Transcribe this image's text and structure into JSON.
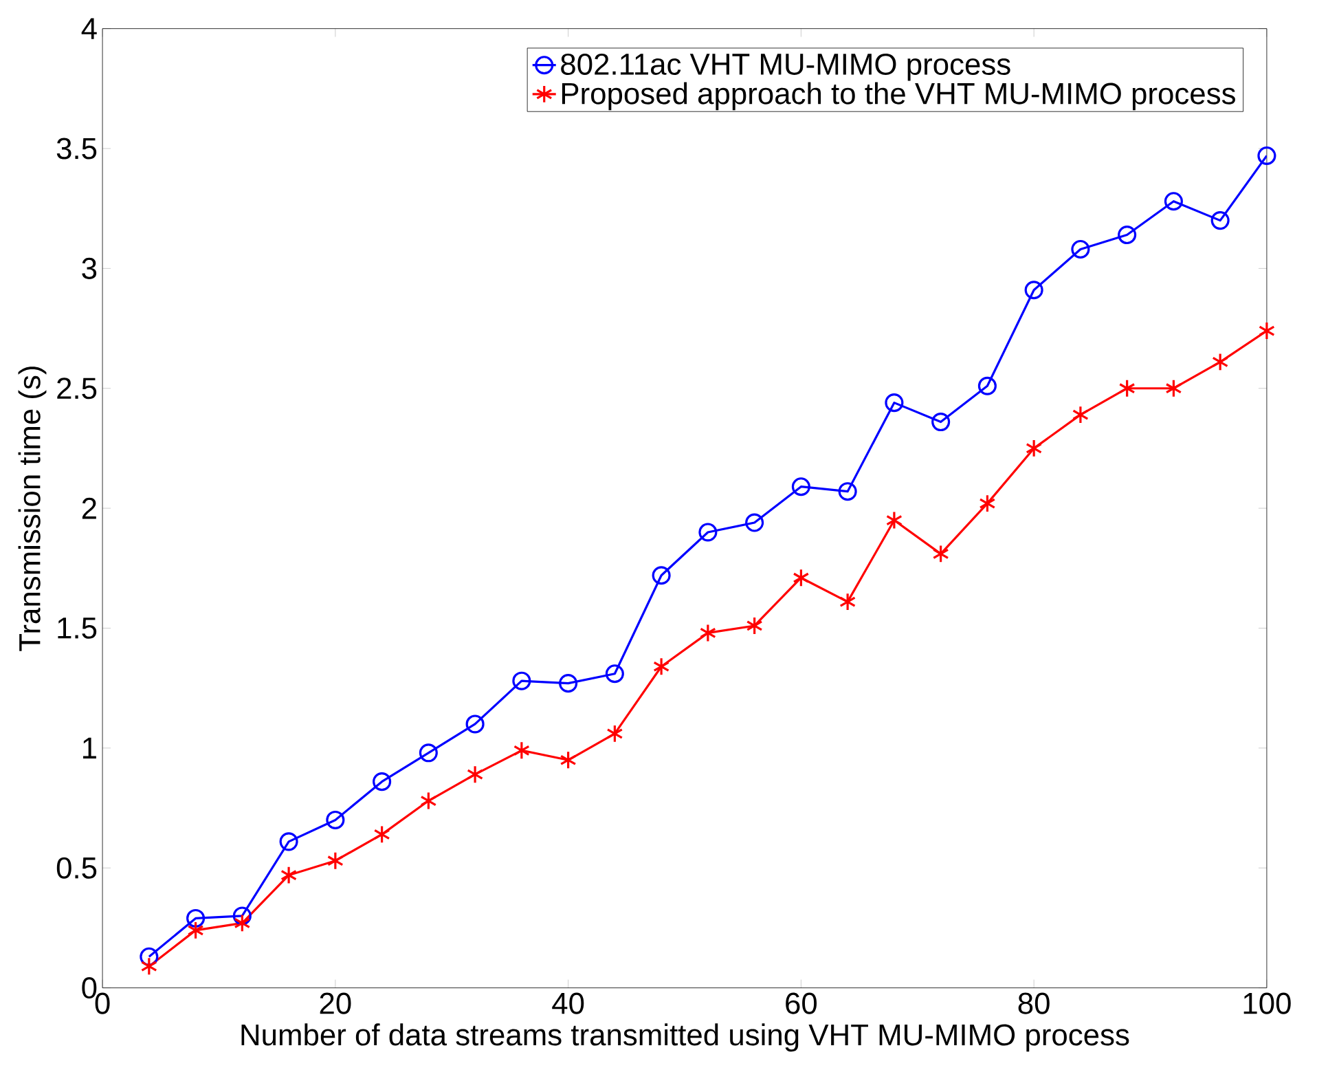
{
  "chart_data": {
    "type": "line",
    "xlabel": "Number of data streams transmitted using VHT MU-MIMO process",
    "ylabel": "Transmission time (s)",
    "x": [
      4,
      8,
      12,
      16,
      20,
      24,
      28,
      32,
      36,
      40,
      44,
      48,
      52,
      56,
      60,
      64,
      68,
      72,
      76,
      80,
      84,
      88,
      92,
      96,
      100
    ],
    "series": [
      {
        "name": "802.11ac VHT MU-MIMO process",
        "color": "#0000ff",
        "marker": "circle",
        "values": [
          0.13,
          0.29,
          0.3,
          0.61,
          0.7,
          0.86,
          0.98,
          1.1,
          1.28,
          1.27,
          1.31,
          1.72,
          1.9,
          1.94,
          2.09,
          2.07,
          2.44,
          2.36,
          2.51,
          2.91,
          3.08,
          3.14,
          3.28,
          3.2,
          3.47
        ]
      },
      {
        "name": "Proposed approach to the VHT MU-MIMO process",
        "color": "#ff0000",
        "marker": "cross",
        "values": [
          0.09,
          0.24,
          0.27,
          0.47,
          0.53,
          0.64,
          0.78,
          0.89,
          0.99,
          0.95,
          1.06,
          1.34,
          1.48,
          1.51,
          1.71,
          1.61,
          1.95,
          1.81,
          2.02,
          2.25,
          2.39,
          2.5,
          2.5,
          2.61,
          2.74
        ]
      }
    ],
    "xlim": [
      0,
      100
    ],
    "xticks": [
      0,
      20,
      40,
      60,
      80,
      100
    ],
    "ylim": [
      0,
      4
    ],
    "yticks": [
      0,
      0.5,
      1,
      1.5,
      2,
      2.5,
      3,
      3.5,
      4
    ],
    "legend": "top right",
    "line_style": "solid"
  }
}
